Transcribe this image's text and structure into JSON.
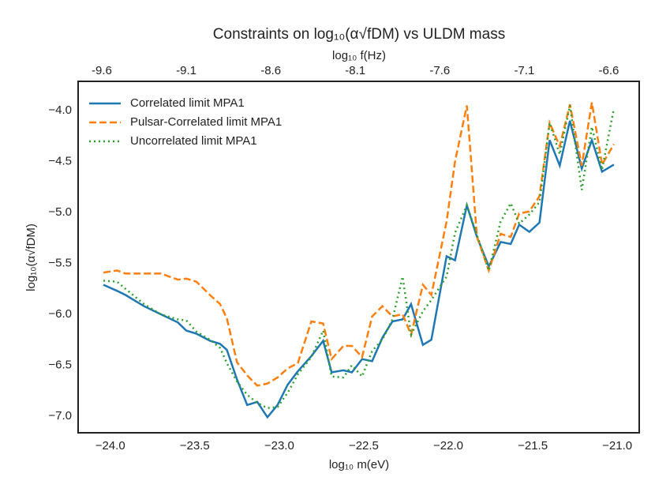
{
  "chart_data": {
    "type": "line",
    "title": "Constraints on log₁₀(α√fDM) vs ULDM mass",
    "x_label": "log₁₀ m(eV)",
    "x2_label": "log₁₀ f(Hz)",
    "y_label": "log₁₀(α√fDM)",
    "x": [
      -24.04,
      -23.96,
      -23.91,
      -23.8,
      -23.7,
      -23.6,
      -23.55,
      -23.49,
      -23.41,
      -23.35,
      -23.31,
      -23.25,
      -23.19,
      -23.13,
      -23.07,
      -23.01,
      -22.95,
      -22.89,
      -22.81,
      -22.74,
      -22.69,
      -22.62,
      -22.57,
      -22.51,
      -22.45,
      -22.39,
      -22.33,
      -22.27,
      -22.22,
      -22.15,
      -22.1,
      -22.01,
      -21.96,
      -21.89,
      -21.83,
      -21.76,
      -21.69,
      -21.63,
      -21.58,
      -21.52,
      -21.46,
      -21.4,
      -21.34,
      -21.28,
      -21.21,
      -21.15,
      -21.09,
      -21.02
    ],
    "series": [
      {
        "name": "Correlated limit MPA1",
        "color": "#1f77b4",
        "style": "solid",
        "values": [
          -5.71,
          -5.77,
          -5.81,
          -5.92,
          -6.0,
          -6.08,
          -6.16,
          -6.19,
          -6.26,
          -6.29,
          -6.35,
          -6.64,
          -6.89,
          -6.86,
          -7.01,
          -6.89,
          -6.69,
          -6.56,
          -6.41,
          -6.26,
          -6.57,
          -6.55,
          -6.57,
          -6.44,
          -6.46,
          -6.23,
          -6.07,
          -6.05,
          -5.9,
          -6.3,
          -6.25,
          -5.43,
          -5.47,
          -4.93,
          -5.24,
          -5.53,
          -5.29,
          -5.31,
          -5.12,
          -5.19,
          -5.1,
          -4.29,
          -4.54,
          -4.1,
          -4.57,
          -4.29,
          -4.6,
          -4.53
        ]
      },
      {
        "name": "Pulsar-Correlated limit MPA1",
        "color": "#ff7f0e",
        "style": "dashed",
        "values": [
          -5.59,
          -5.57,
          -5.6,
          -5.6,
          -5.6,
          -5.66,
          -5.65,
          -5.68,
          -5.81,
          -5.9,
          -6.04,
          -6.47,
          -6.6,
          -6.7,
          -6.68,
          -6.62,
          -6.53,
          -6.48,
          -6.07,
          -6.09,
          -6.44,
          -6.31,
          -6.31,
          -6.42,
          -6.02,
          -5.92,
          -6.02,
          -6.0,
          -6.2,
          -5.71,
          -5.81,
          -5.09,
          -4.5,
          -3.95,
          -5.24,
          -5.57,
          -5.21,
          -5.24,
          -5.01,
          -4.99,
          -4.84,
          -4.12,
          -4.35,
          -3.94,
          -4.54,
          -3.92,
          -4.53,
          -4.33
        ]
      },
      {
        "name": "Uncorrelated limit MPA1",
        "color": "#2ca02c",
        "style": "dotted",
        "values": [
          -5.67,
          -5.68,
          -5.75,
          -5.9,
          -6.0,
          -6.05,
          -6.06,
          -6.17,
          -6.25,
          -6.33,
          -6.48,
          -6.66,
          -6.79,
          -6.87,
          -6.92,
          -6.91,
          -6.77,
          -6.59,
          -6.42,
          -6.16,
          -6.61,
          -6.62,
          -6.5,
          -6.61,
          -6.36,
          -6.25,
          -6.05,
          -5.63,
          -6.2,
          -5.97,
          -5.86,
          -5.63,
          -5.2,
          -4.93,
          -5.22,
          -5.57,
          -5.09,
          -4.91,
          -5.11,
          -5.02,
          -4.9,
          -4.12,
          -4.43,
          -3.95,
          -4.78,
          -4.16,
          -4.58,
          -3.98
        ]
      }
    ],
    "xlim": [
      -24.19,
      -20.87
    ],
    "xticks": [
      {
        "value": -24,
        "label": "−24.0"
      },
      {
        "value": -23.5,
        "label": "−23.5"
      },
      {
        "value": -23,
        "label": "−23.0"
      },
      {
        "value": -22.5,
        "label": "−22.5"
      },
      {
        "value": -22,
        "label": "−22.0"
      },
      {
        "value": -21.5,
        "label": "−21.5"
      },
      {
        "value": -21,
        "label": "−21.0"
      }
    ],
    "x2lim": [
      -9.74,
      -6.42
    ],
    "x2ticks": [
      -9.6,
      -9.1,
      -8.6,
      -8.1,
      -7.6,
      -7.1,
      -6.6
    ],
    "ylim": [
      -7.163,
      -3.713
    ],
    "yticks": [
      {
        "value": -7,
        "label": "−7.0"
      },
      {
        "value": -6.5,
        "label": "−6.5"
      },
      {
        "value": -6,
        "label": "−6.0"
      },
      {
        "value": -5.5,
        "label": "−5.5"
      },
      {
        "value": -5,
        "label": "−5.0"
      },
      {
        "value": -4.5,
        "label": "−4.5"
      },
      {
        "value": -4,
        "label": "−4.0"
      }
    ],
    "grid": false,
    "legend": "upper left"
  }
}
